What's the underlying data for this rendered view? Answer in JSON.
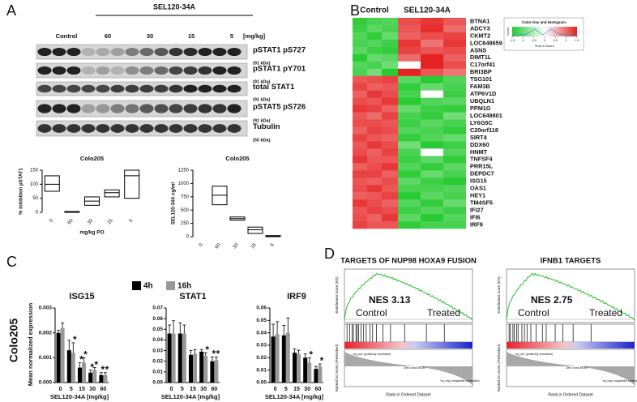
{
  "panel_a": {
    "label": "A",
    "blot": {
      "header": "SEL120-34A",
      "lanes": [
        "Control",
        "60",
        "30",
        "15",
        "5"
      ],
      "unit": "[mg/kg]",
      "rows": [
        {
          "name": "pSTAT1 pS727",
          "kda": "(91 kDa)"
        },
        {
          "name": "pSTAT1 pY701",
          "kda": "(91 kDa)"
        },
        {
          "name": "total STAT1",
          "kda": "(91 kDa)"
        },
        {
          "name": "pSTAT5 pS726",
          "kda": "(91 kDa)"
        },
        {
          "name": "Tubulin",
          "kda": "(50 kDa)"
        }
      ]
    },
    "charts": [
      {
        "type": "box",
        "title": "Colo205",
        "ylabel": "% inhibition pSTAT1",
        "xlabel": "mg/kg PO",
        "categories": [
          "0",
          "60",
          "30",
          "15",
          "5"
        ],
        "boxes": [
          [
            75,
            100,
            130
          ],
          [
            0,
            2,
            3
          ],
          [
            25,
            40,
            55
          ],
          [
            55,
            70,
            80
          ],
          [
            50,
            130,
            150
          ]
        ],
        "ylim": [
          0,
          150
        ],
        "yticks": [
          0,
          50,
          100,
          150
        ]
      },
      {
        "type": "box",
        "title": "Colo205",
        "ylabel": "SEL120-34A ng/ml",
        "categories": [
          "0",
          "60",
          "30",
          "15",
          "5"
        ],
        "boxes": [
          null,
          [
            600,
            780,
            950
          ],
          [
            310,
            340,
            370
          ],
          [
            60,
            130,
            180
          ],
          [
            0,
            10,
            20
          ]
        ],
        "ylim": [
          0,
          1250
        ],
        "yticks": [
          0,
          250,
          500,
          750,
          1000,
          1250
        ]
      }
    ]
  },
  "panel_b": {
    "label": "B",
    "groups": [
      "Control",
      "SEL120-34A"
    ],
    "genes": [
      "BTNA1",
      "ADCY3",
      "CKMT2",
      "LOC648659",
      "ASNS",
      "DIMT1L",
      "C17orf41",
      "BRI3BP",
      "TSG101",
      "FAM3B",
      "ATP6V1D",
      "UBQLN1",
      "PPM1G",
      "LOC649801",
      "LY6G5C",
      "C20orf118",
      "SIRT4",
      "DDX60",
      "HNMT",
      "TNFSF4",
      "PRR15L",
      "DEPDC7",
      "ISG15",
      "OAS1",
      "HEY1",
      "TM4SF5",
      "IFI27",
      "IFI6",
      "IRF9"
    ],
    "z_scores": [
      [
        -1.2,
        -1.0,
        -0.9,
        1.0,
        1.2,
        0.9
      ],
      [
        -1.1,
        -0.8,
        -1.0,
        0.9,
        1.3,
        0.7
      ],
      [
        -0.9,
        -1.2,
        -0.7,
        0.8,
        1.0,
        1.1
      ],
      [
        -1.0,
        -0.9,
        -1.1,
        1.2,
        0.6,
        1.2
      ],
      [
        -0.8,
        -1.1,
        -1.2,
        1.1,
        0.9,
        1.0
      ],
      [
        -1.3,
        -0.7,
        -0.8,
        0.7,
        1.4,
        0.8
      ],
      [
        -0.9,
        -1.0,
        -0.6,
        0.0,
        1.5,
        1.0
      ],
      [
        -1.0,
        -0.6,
        -1.3,
        1.4,
        0.9,
        0.6
      ],
      [
        0.9,
        1.0,
        1.1,
        -0.8,
        -1.3,
        -0.9
      ],
      [
        1.1,
        0.8,
        0.9,
        -1.2,
        -0.7,
        -1.0
      ],
      [
        0.8,
        1.2,
        1.0,
        -1.0,
        0.0,
        -1.1
      ],
      [
        1.0,
        0.9,
        1.2,
        -1.3,
        -0.9,
        -0.8
      ],
      [
        1.2,
        1.1,
        0.8,
        -0.7,
        -1.1,
        -1.2
      ],
      [
        0.9,
        0.7,
        1.1,
        -1.0,
        -1.2,
        -0.6
      ],
      [
        1.0,
        1.0,
        0.9,
        -1.1,
        -0.8,
        -1.0
      ],
      [
        0.8,
        1.1,
        1.0,
        -0.9,
        -1.0,
        -1.2
      ],
      [
        1.1,
        0.9,
        0.8,
        -1.2,
        -0.9,
        -0.7
      ],
      [
        0.9,
        1.2,
        1.0,
        -0.6,
        -1.3,
        -1.1
      ],
      [
        1.0,
        0.8,
        1.1,
        -1.0,
        0.0,
        -0.9
      ],
      [
        1.2,
        0.9,
        0.9,
        -1.1,
        -0.8,
        -1.2
      ],
      [
        0.8,
        1.0,
        1.2,
        -0.9,
        -1.2,
        -0.8
      ],
      [
        1.1,
        1.1,
        0.8,
        -1.2,
        -0.7,
        -1.0
      ],
      [
        0.9,
        0.8,
        1.0,
        -0.8,
        -1.1,
        -1.3
      ],
      [
        1.0,
        1.2,
        0.9,
        -1.0,
        -1.0,
        -0.9
      ],
      [
        0.8,
        0.9,
        1.1,
        -1.3,
        -0.8,
        -1.0
      ],
      [
        1.2,
        1.0,
        0.8,
        -0.9,
        -1.2,
        -0.7
      ],
      [
        0.9,
        1.1,
        1.0,
        -1.1,
        -0.9,
        -1.1
      ],
      [
        1.0,
        0.8,
        1.2,
        -0.8,
        -1.3,
        -0.9
      ],
      [
        1.1,
        0.9,
        0.9,
        -1.2,
        -1.0,
        -1.0
      ]
    ],
    "color_key": {
      "title": "Color Key and Histogram",
      "ticks": [
        -1.5,
        -1,
        -0.5,
        0,
        0.5,
        1,
        1.5
      ],
      "xlabel": "Row Z-Score",
      "ylabel": "Count"
    }
  },
  "panel_c": {
    "label": "C",
    "side_label": "Colo205",
    "ylabel": "Mean normalized expression",
    "xlabel": "SEL120-34A [mg/kg]",
    "series": [
      {
        "name": "4h",
        "color": "#000000"
      },
      {
        "name": "16h",
        "color": "#999999"
      }
    ],
    "charts": [
      {
        "type": "bar",
        "title": "ISG15",
        "categories": [
          "0",
          "5",
          "15",
          "30",
          "60"
        ],
        "ylim": [
          0,
          0.003
        ],
        "yticks": [
          {
            "value": 0,
            "label": "0.000"
          },
          {
            "value": 0.001,
            "label": "0.001"
          },
          {
            "value": 0.002,
            "label": "0.002"
          },
          {
            "value": 0.003,
            "label": "0.003"
          }
        ],
        "values": [
          [
            0.002,
            0.0013,
            0.0006,
            0.0004,
            0.0003
          ],
          [
            0.0022,
            0.0012,
            0.0008,
            0.0005,
            0.0003
          ]
        ],
        "errors": [
          [
            0.0001,
            0.0004,
            0.0002,
            0.0001,
            0.0001
          ],
          [
            0.0002,
            0.0004,
            0.0002,
            0.0001,
            0.0001
          ]
        ],
        "stars": [
          [
            null,
            null,
            "*",
            "*",
            "*"
          ],
          [
            null,
            "*",
            "*",
            "*",
            "*"
          ]
        ]
      },
      {
        "type": "bar",
        "title": "STAT1",
        "categories": [
          "0",
          "5",
          "15",
          "30",
          "60"
        ],
        "ylim": [
          0,
          0.07
        ],
        "yticks": [
          {
            "value": 0,
            "label": "0.00"
          },
          {
            "value": 0.01,
            "label": "0.01"
          },
          {
            "value": 0.02,
            "label": "0.02"
          },
          {
            "value": 0.03,
            "label": "0.03"
          },
          {
            "value": 0.04,
            "label": "0.04"
          },
          {
            "value": 0.05,
            "label": "0.05"
          },
          {
            "value": 0.06,
            "label": "0.06"
          },
          {
            "value": 0.07,
            "label": "0.07"
          }
        ],
        "values": [
          [
            0.046,
            0.046,
            0.026,
            0.029,
            0.02
          ],
          [
            0.046,
            0.046,
            0.027,
            0.025,
            0.021
          ]
        ],
        "errors": [
          [
            0.008,
            0.01,
            0.004,
            0.002,
            0.004
          ],
          [
            0.012,
            0.008,
            0.004,
            0.003,
            0.003
          ]
        ],
        "stars": [
          [
            null,
            null,
            null,
            null,
            "*"
          ],
          [
            null,
            null,
            null,
            "*",
            "*"
          ]
        ]
      },
      {
        "type": "bar",
        "title": "IRF9",
        "categories": [
          "0",
          "5",
          "15",
          "30",
          "60"
        ],
        "ylim": [
          0,
          0.06
        ],
        "yticks": [
          {
            "value": 0,
            "label": "0.00"
          },
          {
            "value": 0.01,
            "label": "0.01"
          },
          {
            "value": 0.02,
            "label": "0.02"
          },
          {
            "value": 0.03,
            "label": "0.03"
          },
          {
            "value": 0.04,
            "label": "0.04"
          },
          {
            "value": 0.05,
            "label": "0.05"
          },
          {
            "value": 0.06,
            "label": "0.06"
          }
        ],
        "values": [
          [
            0.037,
            0.038,
            0.024,
            0.02,
            0.011
          ],
          [
            0.039,
            0.04,
            0.023,
            0.016,
            0.013
          ]
        ],
        "errors": [
          [
            0.01,
            0.008,
            0.003,
            0.003,
            0.002
          ],
          [
            0.01,
            0.012,
            0.003,
            0.004,
            0.002
          ]
        ],
        "stars": [
          [
            null,
            null,
            null,
            null,
            null
          ],
          [
            null,
            null,
            null,
            "*",
            "*"
          ]
        ]
      }
    ]
  },
  "panel_d": {
    "label": "D",
    "plots": [
      {
        "title": "TARGETS OF NUP98 HOXA9 FUSION",
        "nes": "NES 3.13",
        "left": "Control",
        "right": "Treated",
        "ylabel_top": "Enrichment score (ES)",
        "ylabel_bottom": "Ranked list metric (PreRanked)",
        "xlabel": "Rank in Ordered Dataset",
        "pos_note": "'na_pos' (positively correlated)",
        "zero_note": "Zero cross at 287",
        "neg_note": "'na_neg' (negatively correlated)"
      },
      {
        "title": "IFNB1 TARGETS",
        "nes": "NES 2.75",
        "left": "Control",
        "right": "Treated",
        "ylabel_top": "Enrichment score (ES)",
        "ylabel_bottom": "Ranked list metric (PreRanked)",
        "xlabel": "Rank in Ordered Dataset",
        "pos_note": "'na_pos' (positively correlated)",
        "zero_note": "Zero cross at 287",
        "neg_note": "'na_neg' (negatively correlated)"
      }
    ]
  }
}
